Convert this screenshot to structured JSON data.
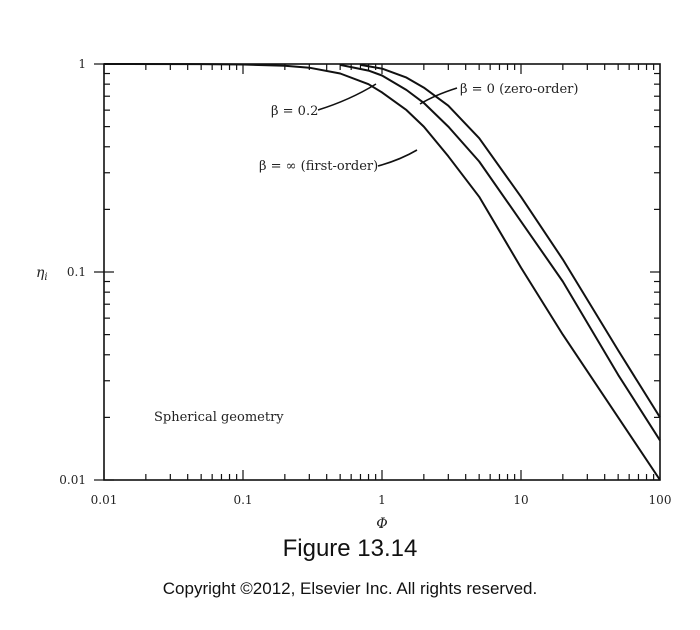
{
  "figure": {
    "title": "Figure 13.14",
    "copyright": "Copyright ©2012, Elsevier Inc. All rights reserved."
  },
  "chart_data": {
    "type": "line",
    "xscale": "log",
    "yscale": "log",
    "xlim": [
      0.01,
      100
    ],
    "ylim": [
      0.01,
      1
    ],
    "xlabel": "Φ",
    "ylabel": "η",
    "ylabel_sub": "i",
    "xticks": [
      {
        "value": 0.01,
        "label": "0.01"
      },
      {
        "value": 0.1,
        "label": "0.1"
      },
      {
        "value": 1,
        "label": "1"
      },
      {
        "value": 10,
        "label": "10"
      },
      {
        "value": 100,
        "label": "100"
      }
    ],
    "yticks": [
      {
        "value": 1,
        "label": "1"
      },
      {
        "value": 0.1,
        "label": "0.1"
      },
      {
        "value": 0.01,
        "label": "0.01"
      }
    ],
    "grid": false,
    "series": [
      {
        "x": [
          0.01,
          0.05,
          0.1,
          0.2,
          0.3,
          0.5,
          0.8,
          1.0,
          1.5,
          2,
          3,
          5,
          10,
          20,
          50,
          100
        ],
        "y": [
          1.0,
          0.999,
          0.995,
          0.98,
          0.96,
          0.9,
          0.8,
          0.73,
          0.6,
          0.5,
          0.36,
          0.23,
          0.105,
          0.05,
          0.02,
          0.01
        ]
      },
      {
        "x": [
          0.5,
          0.8,
          1.0,
          1.5,
          2,
          3,
          5,
          10,
          20,
          50,
          100
        ],
        "y": [
          0.99,
          0.93,
          0.88,
          0.75,
          0.65,
          0.5,
          0.34,
          0.175,
          0.09,
          0.032,
          0.0155
        ]
      },
      {
        "x": [
          0.7,
          1.0,
          1.5,
          2,
          3,
          5,
          10,
          20,
          50,
          100
        ],
        "y": [
          0.99,
          0.95,
          0.86,
          0.77,
          0.63,
          0.44,
          0.23,
          0.115,
          0.042,
          0.02
        ]
      }
    ],
    "annotations": [
      {
        "text": "β = 0.2",
        "series": 1
      },
      {
        "text": "β = ∞ (first-order)",
        "series": 0
      },
      {
        "text": "β = 0 (zero-order)",
        "series": 2
      },
      {
        "text": "Spherical geometry"
      }
    ]
  }
}
